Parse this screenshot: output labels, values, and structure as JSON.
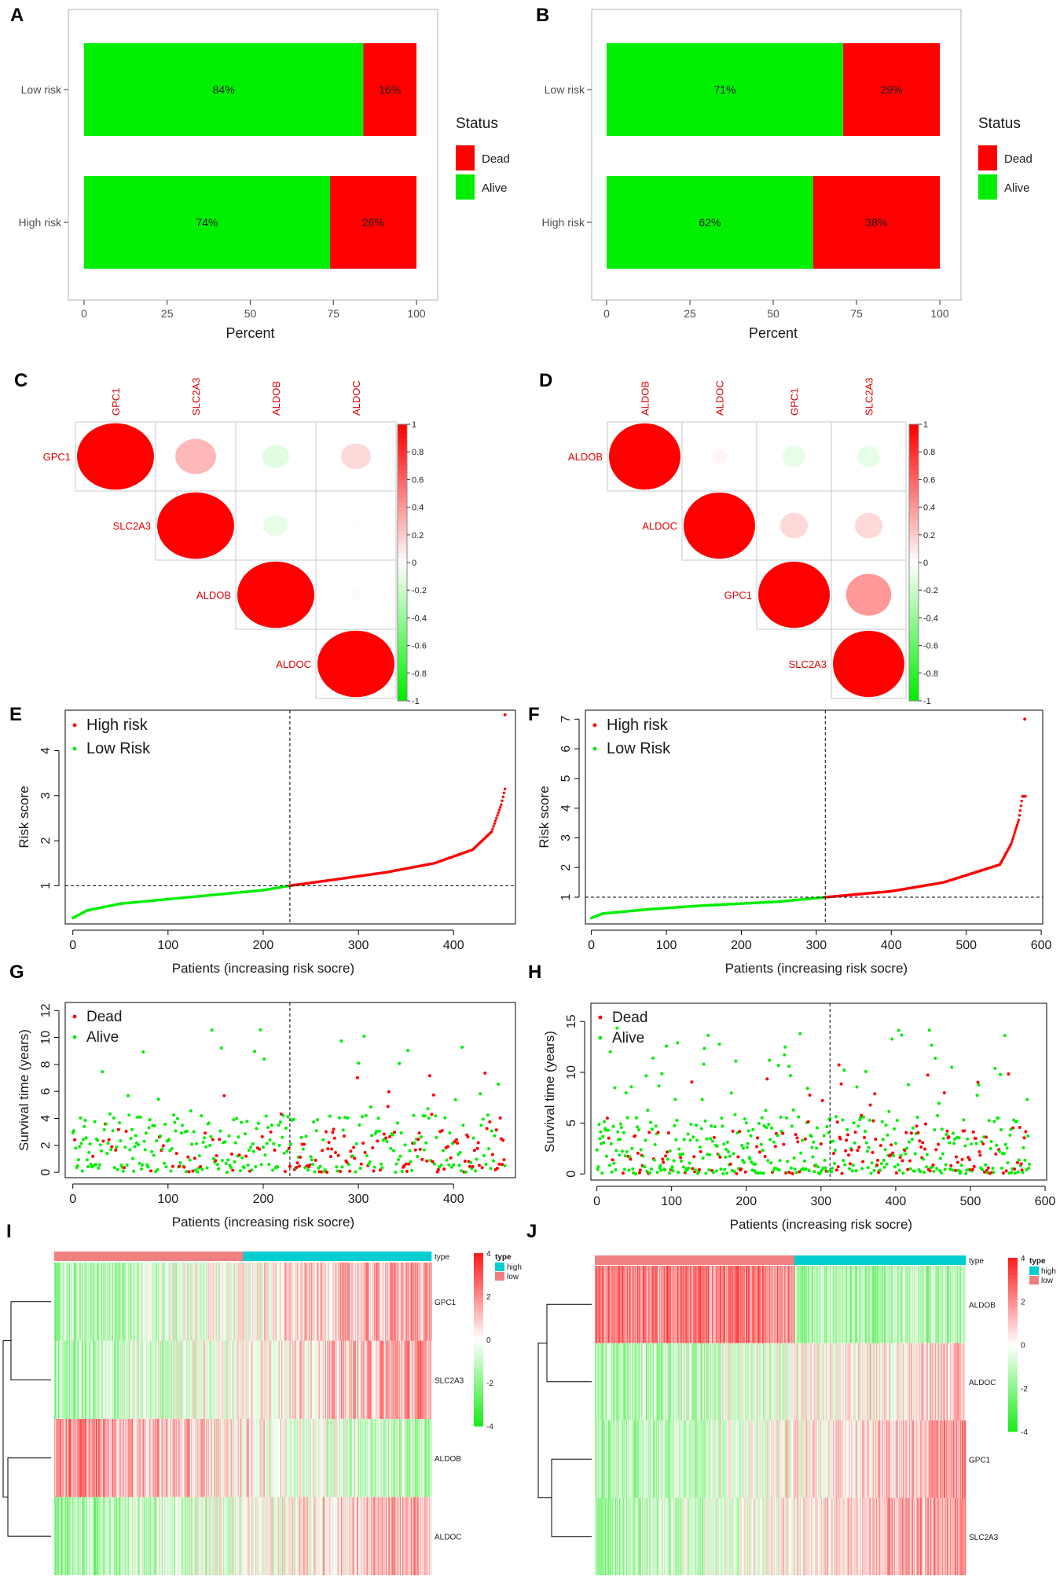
{
  "colors": {
    "alive": "#00ee00",
    "dead": "#ff0000",
    "high_type": "#00ced1",
    "low_type": "#f08080",
    "grid": "#ebebeb"
  },
  "panel_labels": [
    "A",
    "B",
    "C",
    "D",
    "E",
    "F",
    "G",
    "H",
    "I",
    "J"
  ],
  "chart_data": [
    {
      "panel": "A",
      "type": "bar",
      "orientation": "horizontal",
      "stacked": true,
      "categories": [
        "Low risk",
        "High risk"
      ],
      "series": [
        {
          "name": "Alive",
          "values": [
            84,
            74
          ],
          "labels": [
            "84%",
            "74%"
          ]
        },
        {
          "name": "Dead",
          "values": [
            16,
            26
          ],
          "labels": [
            "16%",
            "26%"
          ]
        }
      ],
      "xlabel": "Percent",
      "xticks": [
        "0",
        "25",
        "50",
        "75",
        "100"
      ],
      "xlim": [
        0,
        100
      ],
      "legend_title": "Status",
      "legend": [
        "Dead",
        "Alive"
      ]
    },
    {
      "panel": "B",
      "type": "bar",
      "orientation": "horizontal",
      "stacked": true,
      "categories": [
        "Low risk",
        "High risk"
      ],
      "series": [
        {
          "name": "Alive",
          "values": [
            71,
            62
          ],
          "labels": [
            "71%",
            "62%"
          ]
        },
        {
          "name": "Dead",
          "values": [
            29,
            38
          ],
          "labels": [
            "29%",
            "38%"
          ]
        }
      ],
      "xlabel": "Percent",
      "xticks": [
        "0",
        "25",
        "50",
        "75",
        "100"
      ],
      "xlim": [
        0,
        100
      ],
      "legend_title": "Status",
      "legend": [
        "Dead",
        "Alive"
      ]
    },
    {
      "panel": "C",
      "type": "heatmap",
      "subtype": "correlation",
      "genes": [
        "GPC1",
        "SLC2A3",
        "ALDOB",
        "ALDOC"
      ],
      "matrix": [
        [
          1,
          0.28,
          -0.12,
          0.15
        ],
        [
          0.28,
          1,
          -0.1,
          0.01
        ],
        [
          -0.12,
          -0.1,
          1,
          0.02
        ],
        [
          0.15,
          0.01,
          0.02,
          1
        ]
      ],
      "colorbar_ticks": [
        "1",
        "0.8",
        "0.6",
        "0.4",
        "0.2",
        "0",
        "-0.2",
        "-0.4",
        "-0.6",
        "-0.8",
        "-1"
      ]
    },
    {
      "panel": "D",
      "type": "heatmap",
      "subtype": "correlation",
      "genes": [
        "ALDOB",
        "ALDOC",
        "GPC1",
        "SLC2A3"
      ],
      "matrix": [
        [
          1,
          0.04,
          -0.1,
          -0.1
        ],
        [
          0.04,
          1,
          0.15,
          0.15
        ],
        [
          -0.1,
          0.15,
          1,
          0.4
        ],
        [
          -0.1,
          0.15,
          0.4,
          1
        ]
      ],
      "colorbar_ticks": [
        "1",
        "0.8",
        "0.6",
        "0.4",
        "0.2",
        "0",
        "-0.2",
        "-0.4",
        "-0.6",
        "-0.8",
        "-1"
      ]
    },
    {
      "panel": "E",
      "type": "scatter",
      "n": 455,
      "cutoff_index": 228,
      "cutoff_value": 1,
      "ylabel": "Risk score",
      "xlabel": "Patients (increasing risk socre)",
      "xticks": [
        0,
        100,
        200,
        300,
        400
      ],
      "yticks": [
        1,
        2,
        3,
        4
      ],
      "xlim": [
        -8,
        465
      ],
      "ylim": [
        0.15,
        4.9
      ],
      "curve_low": [
        [
          0,
          0.28
        ],
        [
          15,
          0.45
        ],
        [
          50,
          0.6
        ],
        [
          100,
          0.7
        ],
        [
          150,
          0.8
        ],
        [
          200,
          0.9
        ],
        [
          228,
          1.0
        ]
      ],
      "curve_high": [
        [
          228,
          1.0
        ],
        [
          280,
          1.15
        ],
        [
          330,
          1.3
        ],
        [
          380,
          1.5
        ],
        [
          420,
          1.8
        ],
        [
          440,
          2.2
        ],
        [
          450,
          2.8
        ],
        [
          454,
          3.15
        ]
      ],
      "outlier": [
        454,
        4.8
      ],
      "legend": [
        "High risk",
        "Low Risk"
      ]
    },
    {
      "panel": "F",
      "type": "scatter",
      "n": 580,
      "cutoff_index": 312,
      "cutoff_value": 1,
      "ylabel": "Risk score",
      "xlabel": "Patients (increasing risk socre)",
      "xticks": [
        0,
        100,
        200,
        300,
        400,
        500,
        600
      ],
      "yticks": [
        1,
        2,
        3,
        4,
        5,
        6,
        7
      ],
      "xlim": [
        -8,
        602
      ],
      "ylim": [
        0.1,
        7.3
      ],
      "curve_low": [
        [
          0,
          0.3
        ],
        [
          15,
          0.45
        ],
        [
          80,
          0.6
        ],
        [
          150,
          0.72
        ],
        [
          250,
          0.85
        ],
        [
          312,
          1.0
        ]
      ],
      "curve_high": [
        [
          312,
          1.0
        ],
        [
          400,
          1.2
        ],
        [
          470,
          1.5
        ],
        [
          520,
          1.9
        ],
        [
          545,
          2.1
        ],
        [
          560,
          2.8
        ],
        [
          570,
          3.6
        ],
        [
          575,
          4.4
        ]
      ],
      "outlier": [
        578,
        7.0
      ],
      "legend": [
        "High risk",
        "Low Risk"
      ]
    },
    {
      "panel": "G",
      "type": "scatter",
      "n": 455,
      "cutoff_index": 228,
      "ylabel": "Survival time (years)",
      "xlabel": "Patients (increasing risk socre)",
      "xticks": [
        0,
        100,
        200,
        300,
        400
      ],
      "yticks": [
        0,
        2,
        4,
        6,
        8,
        10,
        12
      ],
      "xlim": [
        -8,
        465
      ],
      "ylim": [
        -0.4,
        12.6
      ],
      "legend": [
        "Dead",
        "Alive"
      ]
    },
    {
      "panel": "H",
      "type": "scatter",
      "n": 580,
      "cutoff_index": 312,
      "ylabel": "Survival time (years)",
      "xlabel": "Patients (increasing risk socre)",
      "xticks": [
        0,
        100,
        200,
        300,
        400,
        500,
        600
      ],
      "yticks": [
        0,
        5,
        10,
        15
      ],
      "xlim": [
        -8,
        602
      ],
      "ylim": [
        -0.6,
        16.8
      ],
      "legend": [
        "Dead",
        "Alive"
      ]
    },
    {
      "panel": "I",
      "type": "heatmap",
      "subtype": "expression",
      "rows": [
        "GPC1",
        "SLC2A3",
        "ALDOB",
        "ALDOC"
      ],
      "n": 455,
      "split_index": 228,
      "colorbar_ticks": [
        "4",
        "2",
        "0",
        "-2",
        "-4"
      ],
      "type_label": "type",
      "legend_title": "type",
      "legend": [
        "high",
        "low"
      ]
    },
    {
      "panel": "J",
      "type": "heatmap",
      "subtype": "expression",
      "rows": [
        "ALDOB",
        "ALDOC",
        "GPC1",
        "SLC2A3"
      ],
      "n": 580,
      "split_index": 312,
      "colorbar_ticks": [
        "4",
        "2",
        "0",
        "-2",
        "-4"
      ],
      "type_label": "type",
      "legend_title": "type",
      "legend": [
        "high",
        "low"
      ]
    }
  ]
}
